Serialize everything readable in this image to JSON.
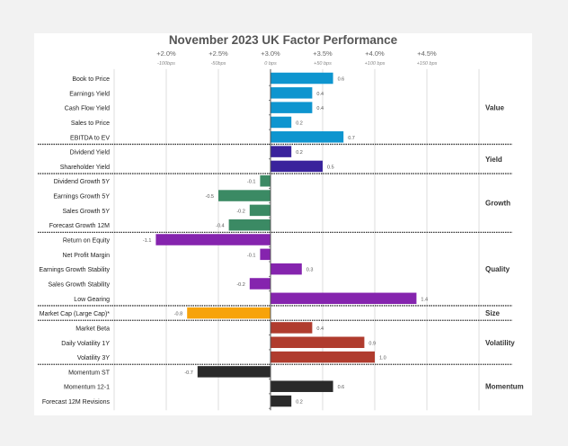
{
  "chart_data": {
    "type": "bar",
    "orientation": "horizontal",
    "title": "November 2023 UK Factor Performance",
    "top_axis_labels": [
      "+2.0%",
      "+2.5%",
      "+3.0%",
      "+3.5%",
      "+4.0%",
      "+4.5%"
    ],
    "top_axis_sublabels": [
      "-100bps",
      "-50bps",
      "0 bps",
      "+50 bps",
      "+100 bps",
      "+150 bps"
    ],
    "top_axis_values": [
      -1.0,
      -0.5,
      0.0,
      0.5,
      1.0,
      1.5
    ],
    "xlim": [
      -1.5,
      2.0
    ],
    "grid": true,
    "groups": [
      {
        "name": "Value",
        "color": "#0e95cf",
        "items": [
          {
            "label": "Book to Price",
            "value": 0.6
          },
          {
            "label": "Earnings Yield",
            "value": 0.4
          },
          {
            "label": "Cash Flow Yield",
            "value": 0.4
          },
          {
            "label": "Sales to Price",
            "value": 0.2
          },
          {
            "label": "EBITDA to EV",
            "value": 0.7
          }
        ]
      },
      {
        "name": "Yield",
        "color": "#3a239c",
        "items": [
          {
            "label": "Dividend Yield",
            "value": 0.2
          },
          {
            "label": "Shareholder Yield",
            "value": 0.5
          }
        ]
      },
      {
        "name": "Growth",
        "color": "#3b8a64",
        "items": [
          {
            "label": "Dividend Growth 5Y",
            "value": -0.1
          },
          {
            "label": "Earnings Growth 5Y",
            "value": -0.5
          },
          {
            "label": "Sales Growth 5Y",
            "value": -0.2
          },
          {
            "label": "Forecast Growth 12M",
            "value": -0.4
          }
        ]
      },
      {
        "name": "Quality",
        "color": "#8524ae",
        "items": [
          {
            "label": "Return on Equity",
            "value": -1.1
          },
          {
            "label": "Net Profit Margin",
            "value": -0.1
          },
          {
            "label": "Earnings Growth Stability",
            "value": 0.3
          },
          {
            "label": "Sales Growth Stability",
            "value": -0.2
          },
          {
            "label": "Low Gearing",
            "value": 1.4
          }
        ]
      },
      {
        "name": "Size",
        "color": "#f7a30a",
        "items": [
          {
            "label": "Market Cap (Large Cap)*",
            "value": -0.8
          }
        ]
      },
      {
        "name": "Volatility",
        "color": "#b03c2e",
        "items": [
          {
            "label": "Market Beta",
            "value": 0.4
          },
          {
            "label": "Daily Volatility 1Y",
            "value": 0.9
          },
          {
            "label": "Volatility 3Y",
            "value": 1.0
          }
        ]
      },
      {
        "name": "Momentum",
        "color": "#2a2a2a",
        "items": [
          {
            "label": "Momentum ST",
            "value": -0.7
          },
          {
            "label": "Momentum 12-1",
            "value": 0.6
          },
          {
            "label": "Forecast 12M Revisions",
            "value": 0.2
          }
        ]
      }
    ]
  }
}
